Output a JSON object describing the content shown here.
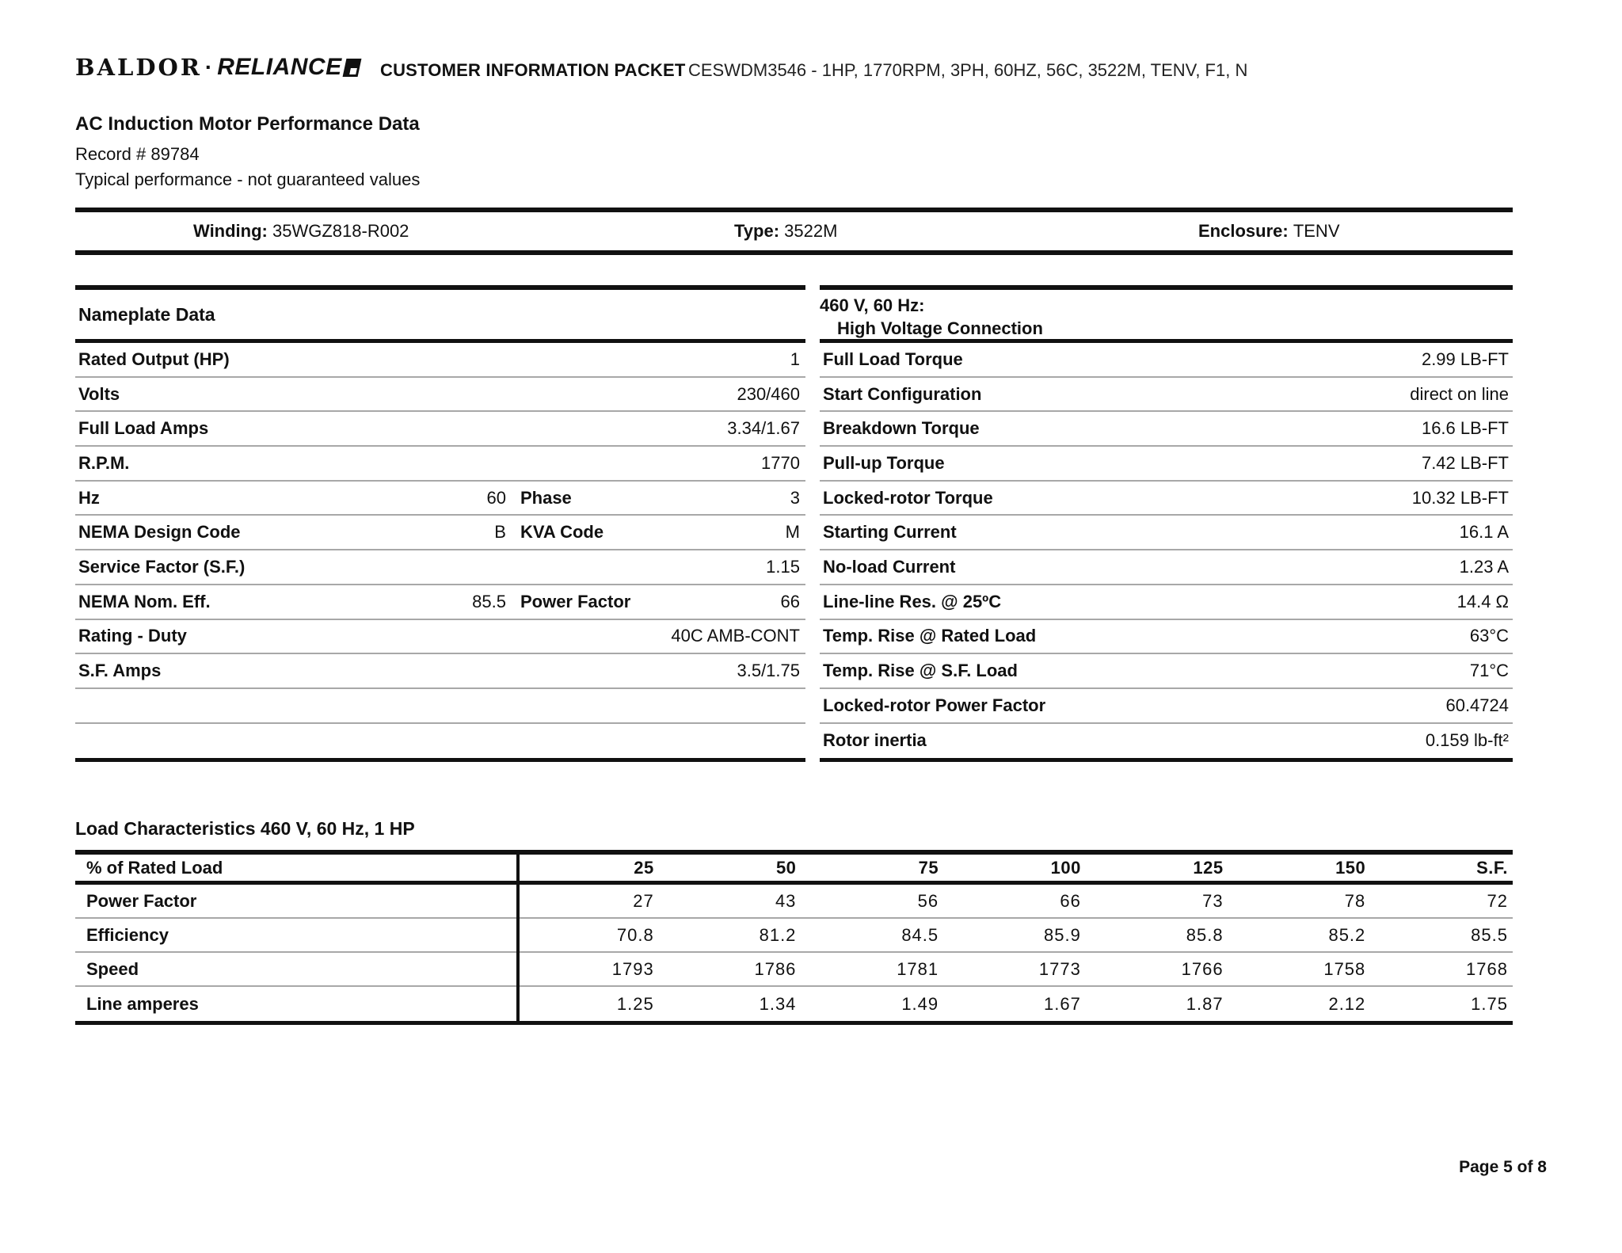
{
  "header": {
    "logo_baldor": "BALDOR",
    "logo_separator": "·",
    "logo_reliance": "RELIANCE",
    "packet_title": "CUSTOMER INFORMATION PACKET",
    "model_line": "CESWDM3546 - 1HP, 1770RPM, 3PH, 60HZ, 56C, 3522M, TENV, F1, N"
  },
  "title_block": {
    "title": "AC Induction Motor Performance Data",
    "record": "Record # 89784",
    "note": "Typical performance - not guaranteed values"
  },
  "winding_bar": {
    "winding_label": "Winding: ",
    "winding_value": "35WGZ818-R002",
    "type_label": "Type: ",
    "type_value": "3522M",
    "enclosure_label": "Enclosure: ",
    "enclosure_value": "TENV"
  },
  "nameplate": {
    "header": "Nameplate Data",
    "rows": [
      {
        "l1": "Rated Output (HP)",
        "v1": "",
        "l2": "",
        "v2": "1"
      },
      {
        "l1": "Volts",
        "v1": "",
        "l2": "",
        "v2": "230/460"
      },
      {
        "l1": "Full Load Amps",
        "v1": "",
        "l2": "",
        "v2": "3.34/1.67"
      },
      {
        "l1": "R.P.M.",
        "v1": "",
        "l2": "",
        "v2": "1770"
      },
      {
        "l1": "Hz",
        "v1": "60",
        "l2": "Phase",
        "v2": "3"
      },
      {
        "l1": "NEMA Design Code",
        "v1": "B",
        "l2": "KVA Code",
        "v2": "M"
      },
      {
        "l1": "Service Factor (S.F.)",
        "v1": "",
        "l2": "",
        "v2": "1.15"
      },
      {
        "l1": "NEMA Nom. Eff.",
        "v1": "85.5",
        "l2": "Power Factor",
        "v2": "66"
      },
      {
        "l1": "Rating - Duty",
        "v1": "",
        "l2": "",
        "v2": "40C AMB-CONT"
      },
      {
        "l1": "S.F. Amps",
        "v1": "",
        "l2": "",
        "v2": "3.5/1.75"
      },
      {
        "l1": "",
        "v1": "",
        "l2": "",
        "v2": ""
      },
      {
        "l1": "",
        "v1": "",
        "l2": "",
        "v2": ""
      }
    ]
  },
  "hv_connection": {
    "header_line1": "460 V, 60 Hz:",
    "header_line2": "High Voltage Connection",
    "rows": [
      {
        "label": "Full Load Torque",
        "value": "2.99 LB-FT"
      },
      {
        "label": "Start Configuration",
        "value": "direct on line"
      },
      {
        "label": "Breakdown Torque",
        "value": "16.6 LB-FT"
      },
      {
        "label": "Pull-up Torque",
        "value": "7.42 LB-FT"
      },
      {
        "label": "Locked-rotor Torque",
        "value": "10.32 LB-FT"
      },
      {
        "label": "Starting Current",
        "value": "16.1 A"
      },
      {
        "label": "No-load Current",
        "value": "1.23 A"
      },
      {
        "label": "Line-line Res. @ 25ºC",
        "value": "14.4 Ω"
      },
      {
        "label": "Temp. Rise @ Rated Load",
        "value": "63°C"
      },
      {
        "label": "Temp. Rise @ S.F. Load",
        "value": "71°C"
      },
      {
        "label": "Locked-rotor Power Factor",
        "value": "60.4724"
      },
      {
        "label": "Rotor inertia",
        "value": "0.159 lb-ft²"
      }
    ]
  },
  "load_characteristics": {
    "title": "Load Characteristics 460 V, 60 Hz, 1 HP",
    "first_col_header": "% of Rated Load",
    "columns": [
      "25",
      "50",
      "75",
      "100",
      "125",
      "150",
      "S.F."
    ],
    "rows": [
      {
        "label": "Power Factor",
        "values": [
          "27",
          "43",
          "56",
          "66",
          "73",
          "78",
          "72"
        ]
      },
      {
        "label": "Efficiency",
        "values": [
          "70.8",
          "81.2",
          "84.5",
          "85.9",
          "85.8",
          "85.2",
          "85.5"
        ]
      },
      {
        "label": "Speed",
        "values": [
          "1793",
          "1786",
          "1781",
          "1773",
          "1766",
          "1758",
          "1768"
        ]
      },
      {
        "label": "Line amperes",
        "values": [
          "1.25",
          "1.34",
          "1.49",
          "1.67",
          "1.87",
          "2.12",
          "1.75"
        ]
      }
    ]
  },
  "footer": {
    "page": "Page 5 of 8"
  }
}
